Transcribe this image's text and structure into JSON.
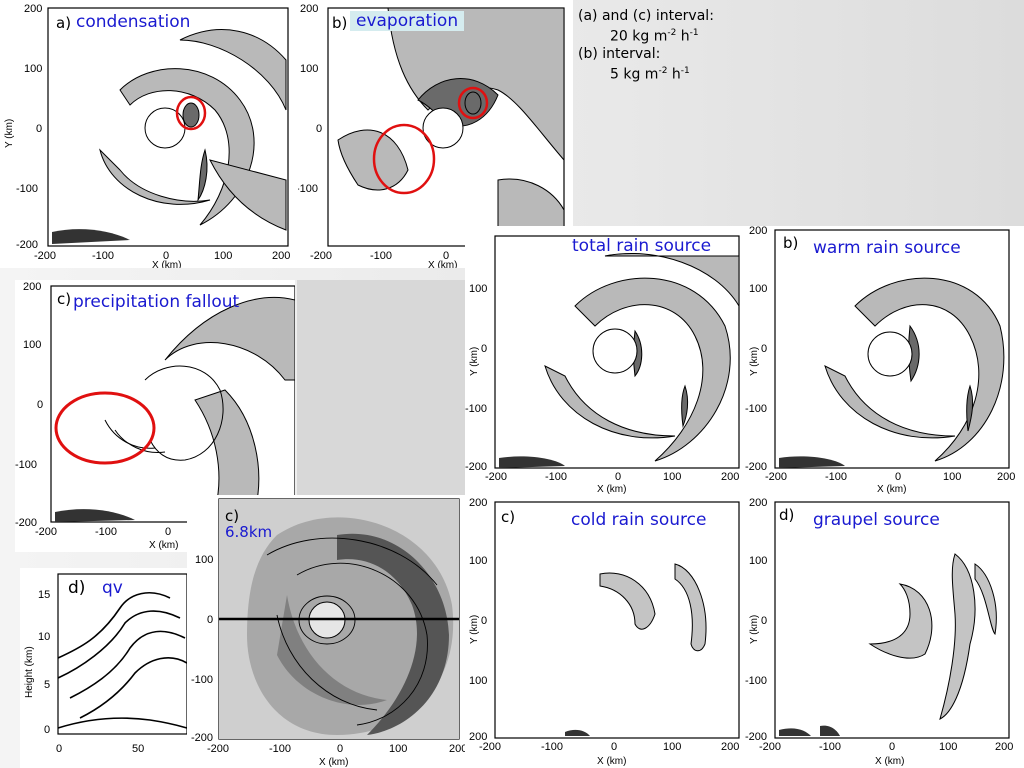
{
  "notes": {
    "line1": "(a) and (c) interval:",
    "line2a": "20 kg m",
    "line2b": "-2",
    "line2c": " h",
    "line2d": "-1",
    "line3": "(b) interval:",
    "line4a": "5 kg m",
    "line4b": "-2",
    "line4c": " h",
    "line4d": "-1"
  },
  "panels": {
    "condensation": {
      "letter": "a)",
      "title": "condensation"
    },
    "evaporation": {
      "letter": "b)",
      "title": "evaporation"
    },
    "fallout": {
      "letter": "c)",
      "title": "precipitation fallout"
    },
    "total_rain": {
      "letter": "",
      "title": "total rain source"
    },
    "warm_rain": {
      "letter": "b)",
      "title": "warm rain source"
    },
    "cold_rain": {
      "letter": "c)",
      "title": "cold rain source"
    },
    "graupel": {
      "letter": "d)",
      "title": "graupel source"
    },
    "height_68": {
      "letter": "c)",
      "title": "6.8km"
    },
    "qv": {
      "letter": "d)",
      "title": "qv"
    }
  },
  "axes": {
    "x_label": "X (km)",
    "y_label": "Y (km)",
    "height_label": "Height (km)",
    "ticks": [
      "-200",
      "-100",
      "0",
      "100",
      "200"
    ],
    "qv_y_ticks": [
      "15",
      "10",
      "5",
      "0"
    ],
    "qv_x_ticks": [
      "0",
      "50"
    ]
  }
}
